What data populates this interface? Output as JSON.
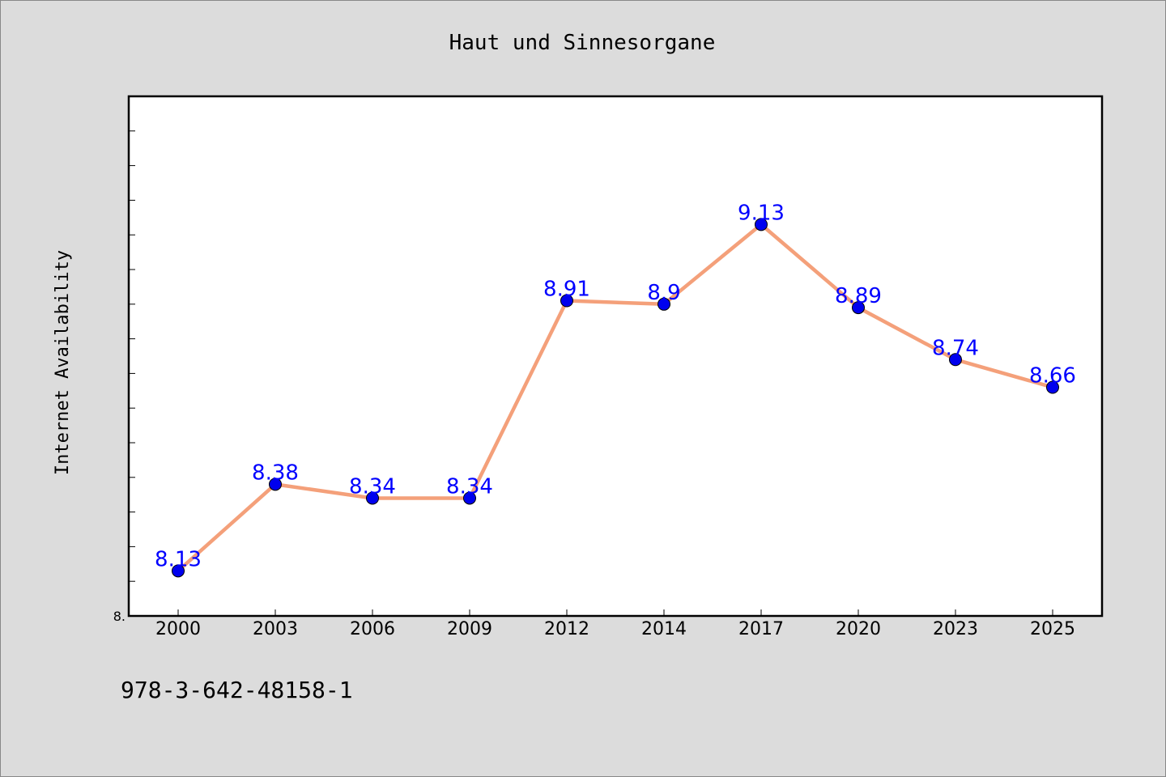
{
  "chart_data": {
    "type": "line",
    "title": "Haut und Sinnesorgane",
    "xlabel": "",
    "ylabel": "Internet Availability",
    "categories": [
      "2000",
      "2003",
      "2006",
      "2009",
      "2012",
      "2014",
      "2017",
      "2020",
      "2023",
      "2025"
    ],
    "series": [
      {
        "values": [
          8.13,
          8.38,
          8.34,
          8.34,
          8.91,
          8.9,
          9.13,
          8.89,
          8.74,
          8.66
        ],
        "labels": [
          "8.13",
          "8.38",
          "8.34",
          "8.34",
          "8.91",
          "8.9",
          "9.13",
          "8.89",
          "8.74",
          "8.66"
        ],
        "line_color": "#f4a07a",
        "marker_color": "#0000ee"
      }
    ],
    "ylim": [
      8.0,
      9.5
    ],
    "ytick_labels": [
      "8."
    ],
    "ytick_values": [
      8.0
    ],
    "yminor_step": 0.1,
    "grid": false,
    "legend": "none",
    "label_color": "#0000ff"
  },
  "footer_text": "978-3-642-48158-1"
}
